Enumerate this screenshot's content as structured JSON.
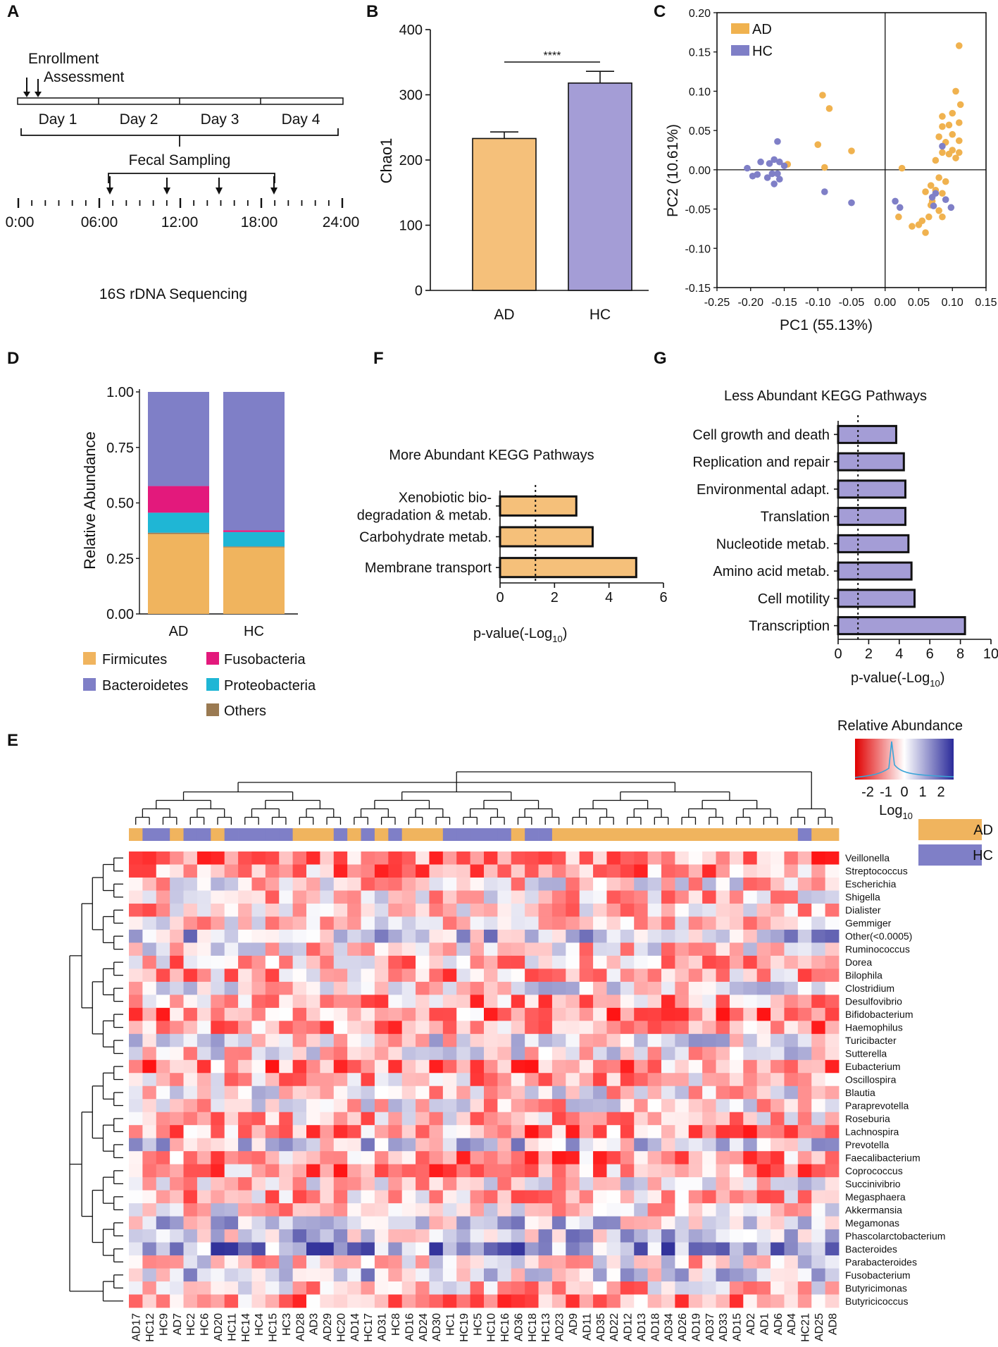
{
  "panel_labels": {
    "A": "A",
    "B": "B",
    "C": "C",
    "D": "D",
    "E": "E",
    "F": "F",
    "G": "G"
  },
  "timeline": {
    "enrollment": "Enrollment",
    "assessment": "Assessment",
    "days": [
      "Day 1",
      "Day 2",
      "Day 3",
      "Day 4"
    ],
    "sampling": "Fecal Sampling",
    "times": [
      "0:00",
      "06:00",
      "12:00",
      "18:00",
      "24:00"
    ],
    "sequencing": "16S rDNA Sequencing"
  },
  "chart_data": [
    {
      "id": "B",
      "type": "bar",
      "categories": [
        "AD",
        "HC"
      ],
      "values": [
        233,
        318
      ],
      "errors": [
        10,
        18
      ],
      "colors": [
        "#f5c07a",
        "#a49dd6"
      ],
      "ylabel": "Chao1",
      "ylim": [
        0,
        400
      ],
      "yticks": [
        0,
        100,
        200,
        300,
        400
      ],
      "significance": "****"
    },
    {
      "id": "C",
      "type": "scatter",
      "xlabel": "PC1 (55.13%)",
      "ylabel": "PC2 (10.61%)",
      "xlim": [
        -0.25,
        0.15
      ],
      "ylim": [
        -0.15,
        0.2
      ],
      "xticks": [
        "-0.25",
        "-0.20",
        "-0.15",
        "-0.10",
        "-0.05",
        "0.00",
        "0.05",
        "0.10",
        "0.15"
      ],
      "yticks": [
        "0.20",
        "0.15",
        "0.10",
        "0.05",
        "0.00",
        "-0.05",
        "-0.10",
        "-0.15"
      ],
      "series": [
        {
          "name": "AD",
          "color": "#f0b24f",
          "points": [
            [
              0.11,
              0.158
            ],
            [
              0.105,
              0.1
            ],
            [
              0.112,
              0.083
            ],
            [
              0.1,
              0.072
            ],
            [
              0.085,
              0.068
            ],
            [
              -0.093,
              0.095
            ],
            [
              -0.083,
              0.078
            ],
            [
              -0.1,
              0.032
            ],
            [
              -0.05,
              0.024
            ],
            [
              -0.145,
              0.007
            ],
            [
              0.025,
              0.002
            ],
            [
              0.085,
              0.055
            ],
            [
              0.095,
              0.057
            ],
            [
              0.11,
              0.06
            ],
            [
              0.1,
              0.045
            ],
            [
              0.08,
              0.042
            ],
            [
              0.09,
              0.035
            ],
            [
              0.11,
              0.037
            ],
            [
              0.1,
              0.025
            ],
            [
              0.085,
              0.022
            ],
            [
              0.095,
              0.02
            ],
            [
              0.105,
              0.015
            ],
            [
              0.075,
              0.012
            ],
            [
              0.11,
              0.022
            ],
            [
              -0.09,
              0.003
            ],
            [
              0.08,
              -0.01
            ],
            [
              0.09,
              -0.015
            ],
            [
              0.068,
              -0.02
            ],
            [
              0.075,
              -0.026
            ],
            [
              0.06,
              -0.028
            ],
            [
              0.085,
              -0.03
            ],
            [
              0.07,
              -0.04
            ],
            [
              0.08,
              -0.052
            ],
            [
              0.085,
              -0.06
            ],
            [
              0.065,
              -0.06
            ],
            [
              0.055,
              -0.065
            ],
            [
              0.05,
              -0.07
            ],
            [
              0.06,
              -0.08
            ],
            [
              0.02,
              -0.06
            ],
            [
              0.04,
              -0.072
            ],
            [
              0.068,
              -0.045
            ]
          ]
        },
        {
          "name": "HC",
          "color": "#7f7fc7",
          "points": [
            [
              -0.16,
              0.036
            ],
            [
              -0.165,
              0.013
            ],
            [
              -0.157,
              0.01
            ],
            [
              -0.172,
              0.008
            ],
            [
              -0.185,
              0.01
            ],
            [
              -0.205,
              0.002
            ],
            [
              -0.15,
              0.005
            ],
            [
              -0.16,
              -0.005
            ],
            [
              -0.168,
              -0.005
            ],
            [
              -0.19,
              -0.006
            ],
            [
              -0.197,
              -0.008
            ],
            [
              -0.175,
              -0.01
            ],
            [
              -0.157,
              -0.012
            ],
            [
              -0.165,
              -0.018
            ],
            [
              -0.09,
              -0.028
            ],
            [
              -0.05,
              -0.042
            ],
            [
              0.015,
              -0.04
            ],
            [
              0.085,
              0.03
            ],
            [
              0.07,
              -0.035
            ],
            [
              0.09,
              -0.038
            ],
            [
              0.072,
              -0.046
            ],
            [
              0.098,
              -0.048
            ],
            [
              0.022,
              -0.048
            ],
            [
              0.075,
              -0.03
            ]
          ]
        }
      ]
    },
    {
      "id": "D",
      "type": "stacked_bar",
      "categories": [
        "AD",
        "HC"
      ],
      "ylabel": "Relative Abundance",
      "ylim": [
        0,
        1
      ],
      "yticks": [
        "0.00",
        "0.25",
        "0.50",
        "0.75",
        "1.00"
      ],
      "series": [
        {
          "name": "Firmicutes",
          "color": "#f0b45e",
          "values": [
            0.36,
            0.3
          ]
        },
        {
          "name": "Others",
          "color": "#9a7a52",
          "values": [
            0.006,
            0.004
          ]
        },
        {
          "name": "Proteobacteria",
          "color": "#1fb6d5",
          "values": [
            0.09,
            0.065
          ]
        },
        {
          "name": "Fusobacteria",
          "color": "#e3197c",
          "values": [
            0.12,
            0.008
          ]
        },
        {
          "name": "Bacteroidetes",
          "color": "#7f7fc7",
          "values": [
            0.424,
            0.623
          ]
        }
      ]
    },
    {
      "id": "F",
      "type": "bar",
      "orientation": "horizontal",
      "title": "More Abundant KEGG Pathways",
      "categories": [
        "Xenobiotic bio-|degradation & metab.",
        "Carbohydrate metab.",
        "Membrane transport"
      ],
      "values": [
        2.8,
        3.4,
        5.0
      ],
      "color": "#f5c07a",
      "threshold": 1.3,
      "xlim": [
        0,
        6
      ],
      "xticks": [
        "0",
        "2",
        "4",
        "6"
      ],
      "xlabel": "p-value(-Log",
      "xlabel_sub": "10",
      "xlabel_end": ")"
    },
    {
      "id": "G",
      "type": "bar",
      "orientation": "horizontal",
      "title": "Less Abundant KEGG Pathways",
      "categories": [
        "Cell growth and death",
        "Replication and repair",
        "Environmental adapt.",
        "Translation",
        "Nucleotide metab.",
        "Amino acid metab.",
        "Cell motility",
        "Transcription"
      ],
      "values": [
        3.8,
        4.3,
        4.4,
        4.4,
        4.6,
        4.8,
        5.0,
        8.3
      ],
      "color": "#a49dd6",
      "threshold": 1.3,
      "xlim": [
        0,
        10
      ],
      "xticks": [
        "0",
        "2",
        "4",
        "6",
        "8",
        "10"
      ],
      "xlabel": "p-value(-Log",
      "xlabel_sub": "10",
      "xlabel_end": ")"
    },
    {
      "id": "E",
      "type": "heatmap",
      "legend_title": "Relative Abundance",
      "legend_ticks": [
        "-2",
        "-1",
        "0",
        "1",
        "2"
      ],
      "legend_unit": "Log",
      "legend_unit_sub": "10",
      "group_legend": [
        {
          "name": "AD",
          "color": "#f0b45e"
        },
        {
          "name": "HC",
          "color": "#7f7fc7"
        }
      ],
      "columns": [
        "AD17",
        "HC12",
        "HC9",
        "AD7",
        "HC2",
        "HC6",
        "AD20",
        "HC11",
        "HC14",
        "HC4",
        "HC15",
        "HC3",
        "AD28",
        "AD3",
        "AD29",
        "HC20",
        "AD14",
        "HC17",
        "AD31",
        "HC8",
        "AD16",
        "AD24",
        "AD30",
        "HC1",
        "HC19",
        "HC5",
        "HC10",
        "HC16",
        "AD36",
        "HC18",
        "HC13",
        "AD23",
        "AD9",
        "AD11",
        "AD35",
        "AD22",
        "AD12",
        "AD13",
        "AD18",
        "AD34",
        "AD26",
        "AD19",
        "AD37",
        "AD33",
        "AD15",
        "AD2",
        "AD1",
        "AD6",
        "AD4",
        "HC21",
        "AD25",
        "AD8"
      ],
      "rows": [
        "Veillonella",
        "Streptococcus",
        "Escherichia",
        "Shigella",
        "Dialister",
        "Gemmiger",
        "Other(<0.0005)",
        "Ruminococcus",
        "Dorea",
        "Bilophila",
        "Clostridium",
        "Desulfovibrio",
        "Bifidobacterium",
        "Haemophilus",
        "Turicibacter",
        "Sutterella",
        "Eubacterium",
        "Oscillospira",
        "Blautia",
        "Paraprevotella",
        "Roseburia",
        "Lachnospira",
        "Prevotella",
        "Faecalibacterium",
        "Coprococcus",
        "Succinivibrio",
        "Megasphaera",
        "Akkermansia",
        "Megamonas",
        "Phascolarctobacterium",
        "Bacteroides",
        "Parabacteroides",
        "Fusobacterium",
        "Butyricimonas",
        "Butyricicoccus"
      ],
      "row_mean": [
        1.0,
        0.8,
        0.3,
        0.4,
        0.5,
        0.2,
        -0.5,
        0.3,
        0.6,
        0.7,
        0.1,
        0.8,
        1.0,
        0.9,
        0.0,
        0.1,
        1.0,
        0.6,
        0.2,
        0.3,
        0.5,
        0.9,
        -0.3,
        0.9,
        0.9,
        0.2,
        0.6,
        0.3,
        -0.3,
        -0.4,
        -1.0,
        0.2,
        -0.3,
        0.5,
        0.8
      ]
    }
  ]
}
